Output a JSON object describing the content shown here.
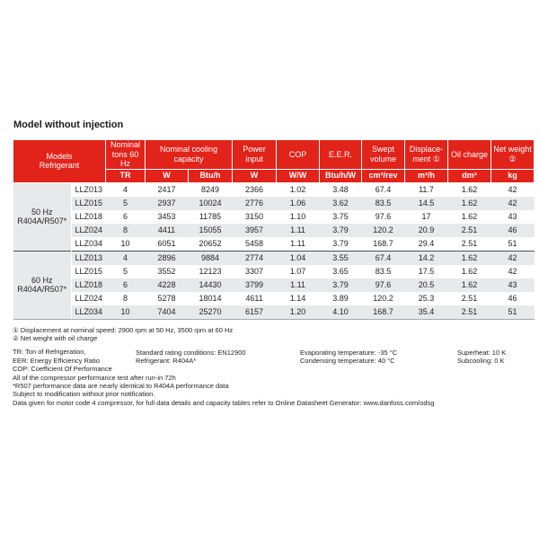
{
  "title": "Model without injection",
  "table": {
    "header": {
      "corner": "Models\nRefrigerant",
      "columns": [
        "Nominal\ntons 60 Hz",
        "Nominal cooling\ncapacity",
        "Power\ninput",
        "COP",
        "E.E.R.",
        "Swept\nvolume",
        "Displace-\nment ①",
        "Oil charge",
        "Net weight\n②"
      ],
      "units": [
        "TR",
        "W",
        "Btu/h",
        "W",
        "W/W",
        "Btu/h/W",
        "cm³/rev",
        "m³/h",
        "dm³",
        "kg"
      ]
    },
    "groups": [
      {
        "label": "50 Hz\nR404A/R507*",
        "rows": [
          [
            "LLZ013",
            "4",
            "2417",
            "8249",
            "2366",
            "1.02",
            "3.48",
            "67.4",
            "11.7",
            "1.62",
            "42"
          ],
          [
            "LLZ015",
            "5",
            "2937",
            "10024",
            "2776",
            "1.06",
            "3.62",
            "83.5",
            "14.5",
            "1.62",
            "42"
          ],
          [
            "LLZ018",
            "6",
            "3453",
            "11785",
            "3150",
            "1.10",
            "3.75",
            "97.6",
            "17",
            "1.62",
            "43"
          ],
          [
            "LLZ024",
            "8",
            "4411",
            "15055",
            "3957",
            "1.11",
            "3.79",
            "120.2",
            "20.9",
            "2.51",
            "46"
          ],
          [
            "LLZ034",
            "10",
            "6051",
            "20652",
            "5458",
            "1.11",
            "3.79",
            "168.7",
            "29.4",
            "2.51",
            "51"
          ]
        ]
      },
      {
        "label": "60 Hz\nR404A/R507*",
        "rows": [
          [
            "LLZ013",
            "4",
            "2896",
            "9884",
            "2774",
            "1.04",
            "3.55",
            "67.4",
            "14.2",
            "1.62",
            "42"
          ],
          [
            "LLZ015",
            "5",
            "3552",
            "12123",
            "3307",
            "1.07",
            "3.65",
            "83.5",
            "17.5",
            "1.62",
            "42"
          ],
          [
            "LLZ018",
            "6",
            "4228",
            "14430",
            "3799",
            "1.11",
            "3.79",
            "97.6",
            "20.5",
            "1.62",
            "43"
          ],
          [
            "LLZ024",
            "8",
            "5278",
            "18014",
            "4611",
            "1.14",
            "3.89",
            "120.2",
            "25.3",
            "2.51",
            "46"
          ],
          [
            "LLZ034",
            "10",
            "7404",
            "25270",
            "6157",
            "1.20",
            "4.10",
            "168.7",
            "35.4",
            "2.51",
            "51"
          ]
        ]
      }
    ]
  },
  "notes": {
    "line1": "① Displacement at nominal speed: 2900 rpm at 50 Hz, 3500 rpm at 60 Hz",
    "line2": "② Net weight with oil charge",
    "col1": [
      "TR: Ton of Refrigeration,",
      "EER: Energy Efficiency Ratio",
      "COP: Coefficient Of Performance",
      "All of the compressor performance test after run-in 72h",
      "*R507 performance data are nearly identical to R404A performance data",
      "Subject to modification without prior notification.",
      "Data given for motor code 4 compressor, for full data details and capacity tables refer to Online Datasheet Generator: www.danfoss.com/odsg"
    ],
    "col2": [
      "Standard rating conditions: EN12900",
      "Refrigerant: R404A*"
    ],
    "col3": [
      "Evaporating temperature: -35 °C",
      "Condensing temperature: 40 °C"
    ],
    "col4": [
      "Superheat: 10 K",
      "Subcooling: 0 K"
    ]
  },
  "colors": {
    "header_red": "#e2231a",
    "band_gray": "#e8e9ea",
    "group_divider": "#4d4e50"
  }
}
